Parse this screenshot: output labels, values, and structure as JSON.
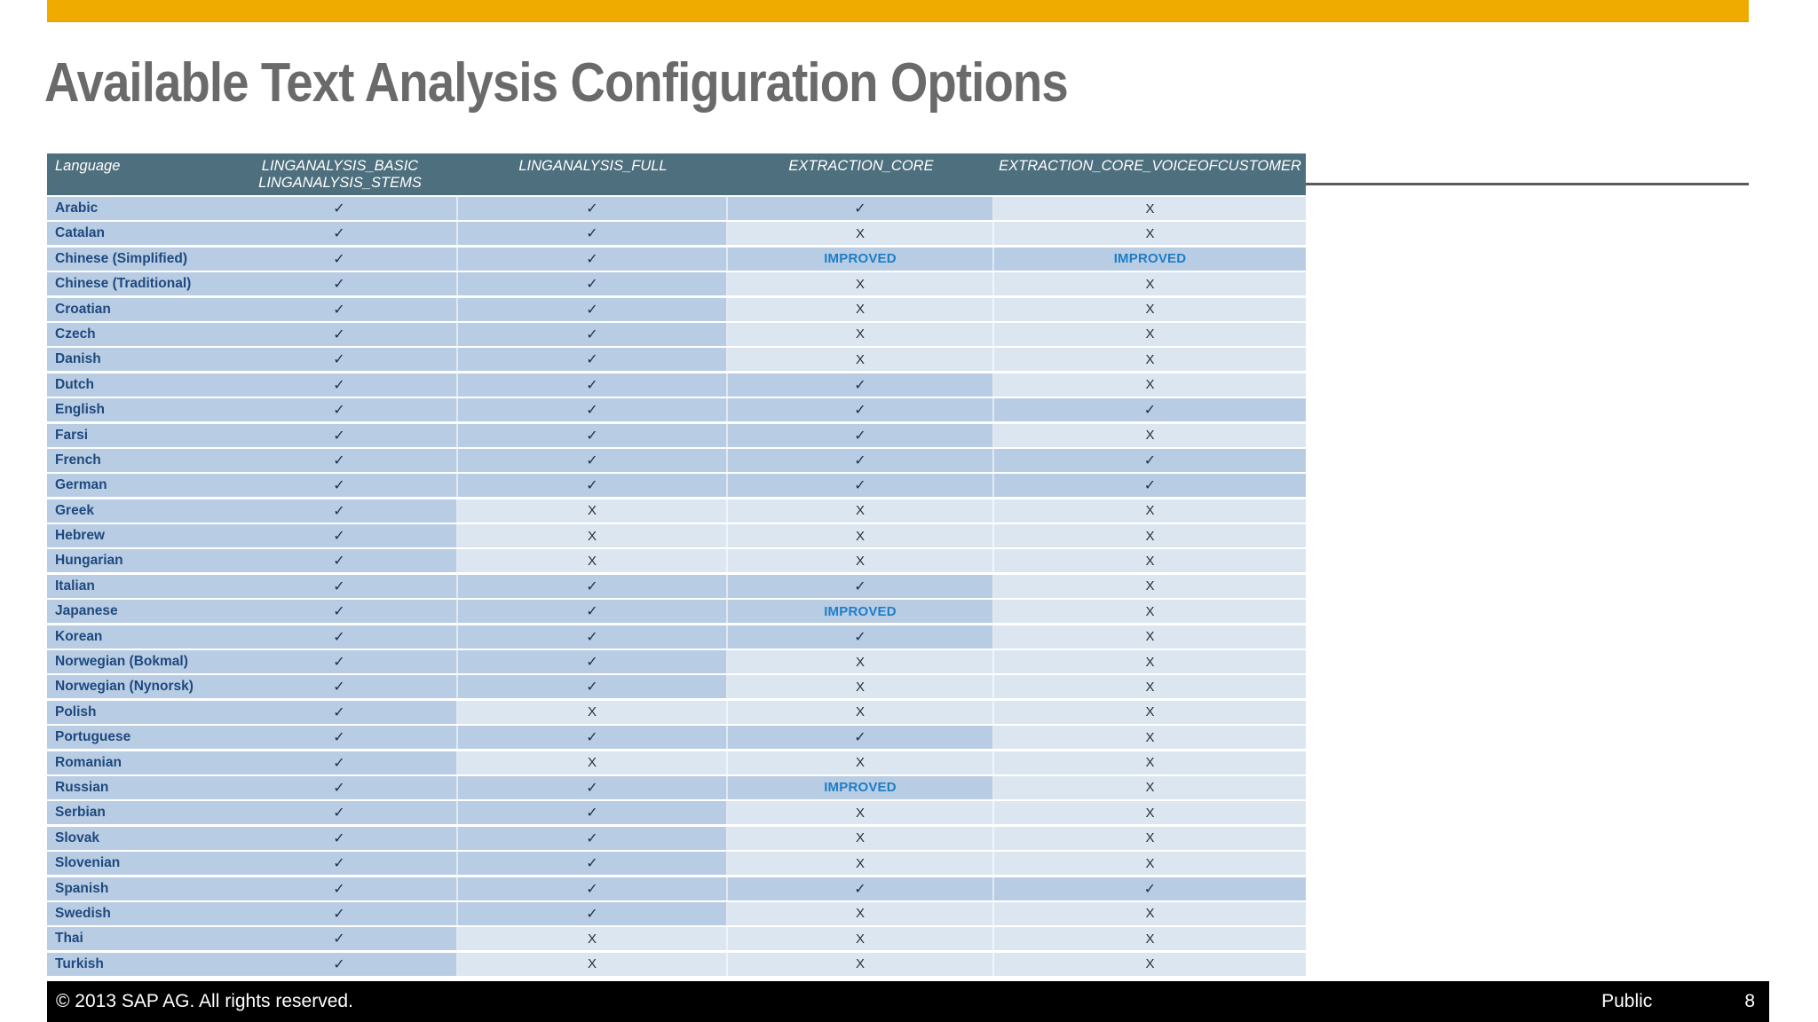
{
  "slide": {
    "title": "Available Text Analysis Configuration Options",
    "copyright": "©  2013 SAP AG. All rights reserved.",
    "classification": "Public",
    "page_number": "8"
  },
  "colors": {
    "accent_bar": "#F0AB00",
    "title": "#6A6A6A",
    "table_header_bg": "#4E6F7D",
    "table_header_text": "#FFFFFF",
    "supported_cell_bg": "#B8CCE4",
    "unsupported_cell_bg": "#DCE6F1",
    "language_text": "#1F497D",
    "check_glyph": "#1F3050",
    "x_glyph": "#2B2F38",
    "improved_text": "#1E7EC6",
    "divider_line": "#595959",
    "footer_bg": "#000000",
    "footer_text": "#FFFFFF"
  },
  "table": {
    "columns": [
      {
        "id": "language",
        "lines": [
          "Language"
        ]
      },
      {
        "id": "linganalysis_basic_stems",
        "lines": [
          "LINGANALYSIS_BASIC",
          "LINGANALYSIS_STEMS"
        ]
      },
      {
        "id": "linganalysis_full",
        "lines": [
          "LINGANALYSIS_FULL"
        ]
      },
      {
        "id": "extraction_core",
        "lines": [
          "EXTRACTION_CORE"
        ]
      },
      {
        "id": "extraction_core_voiceofcustomer",
        "lines": [
          "EXTRACTION_CORE_VOICEOFCUSTOMER"
        ]
      }
    ],
    "symbols": {
      "check": "✓",
      "x": "X",
      "improved": "IMPROVED"
    },
    "rows": [
      {
        "language": "Arabic",
        "values": [
          "check",
          "check",
          "check",
          "x"
        ]
      },
      {
        "language": "Catalan",
        "values": [
          "check",
          "check",
          "x",
          "x"
        ]
      },
      {
        "language": "Chinese (Simplified)",
        "values": [
          "check",
          "check",
          "improved",
          "improved"
        ]
      },
      {
        "language": "Chinese (Traditional)",
        "values": [
          "check",
          "check",
          "x",
          "x"
        ]
      },
      {
        "language": "Croatian",
        "values": [
          "check",
          "check",
          "x",
          "x"
        ]
      },
      {
        "language": "Czech",
        "values": [
          "check",
          "check",
          "x",
          "x"
        ]
      },
      {
        "language": "Danish",
        "values": [
          "check",
          "check",
          "x",
          "x"
        ]
      },
      {
        "language": "Dutch",
        "values": [
          "check",
          "check",
          "check",
          "x"
        ]
      },
      {
        "language": "English",
        "values": [
          "check",
          "check",
          "check",
          "check"
        ]
      },
      {
        "language": "Farsi",
        "values": [
          "check",
          "check",
          "check",
          "x"
        ]
      },
      {
        "language": "French",
        "values": [
          "check",
          "check",
          "check",
          "check"
        ]
      },
      {
        "language": "German",
        "values": [
          "check",
          "check",
          "check",
          "check"
        ]
      },
      {
        "language": "Greek",
        "values": [
          "check",
          "x",
          "x",
          "x"
        ]
      },
      {
        "language": "Hebrew",
        "values": [
          "check",
          "x",
          "x",
          "x"
        ]
      },
      {
        "language": "Hungarian",
        "values": [
          "check",
          "x",
          "x",
          "x"
        ]
      },
      {
        "language": "Italian",
        "values": [
          "check",
          "check",
          "check",
          "x"
        ]
      },
      {
        "language": "Japanese",
        "values": [
          "check",
          "check",
          "improved",
          "x"
        ]
      },
      {
        "language": "Korean",
        "values": [
          "check",
          "check",
          "check",
          "x"
        ]
      },
      {
        "language": "Norwegian (Bokmal)",
        "values": [
          "check",
          "check",
          "x",
          "x"
        ]
      },
      {
        "language": "Norwegian (Nynorsk)",
        "values": [
          "check",
          "check",
          "x",
          "x"
        ]
      },
      {
        "language": "Polish",
        "values": [
          "check",
          "x",
          "x",
          "x"
        ]
      },
      {
        "language": "Portuguese",
        "values": [
          "check",
          "check",
          "check",
          "x"
        ]
      },
      {
        "language": "Romanian",
        "values": [
          "check",
          "x",
          "x",
          "x"
        ]
      },
      {
        "language": "Russian",
        "values": [
          "check",
          "check",
          "improved",
          "x"
        ]
      },
      {
        "language": "Serbian",
        "values": [
          "check",
          "check",
          "x",
          "x"
        ]
      },
      {
        "language": "Slovak",
        "values": [
          "check",
          "check",
          "x",
          "x"
        ]
      },
      {
        "language": "Slovenian",
        "values": [
          "check",
          "check",
          "x",
          "x"
        ]
      },
      {
        "language": "Spanish",
        "values": [
          "check",
          "check",
          "check",
          "check"
        ]
      },
      {
        "language": "Swedish",
        "values": [
          "check",
          "check",
          "x",
          "x"
        ]
      },
      {
        "language": "Thai",
        "values": [
          "check",
          "x",
          "x",
          "x"
        ]
      },
      {
        "language": "Turkish",
        "values": [
          "check",
          "x",
          "x",
          "x"
        ]
      }
    ]
  }
}
